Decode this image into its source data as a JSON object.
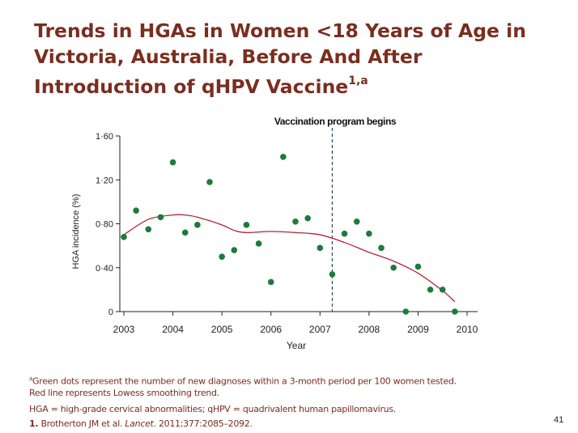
{
  "slide": {
    "title_main": "Trends in HGAs in Women <18 Years of Age in Victoria, Australia, Before And After Introduction of qHPV Vaccine",
    "title_sup": "1,a",
    "page_number": "41"
  },
  "footnotes": {
    "note_a_marker": "a",
    "note_a_line1": "Green dots represent the number of new diagnoses within a 3-month period per 100 women tested.",
    "note_a_line2": "Red line represents Lowess smoothing trend.",
    "abbrev": "HGA = high-grade cervical abnormalities; qHPV = quadrivalent human papillomavirus.",
    "ref_number": "1.",
    "ref_authors": "Brotherton JM et al.",
    "ref_journal": "Lancet",
    "ref_rest": ". 2011;377:2085–2092."
  },
  "colors": {
    "title": "#7a2e1f",
    "dots": "#1e7a3c",
    "trend": "#b5243a",
    "marker_line": "#2b4a6b"
  },
  "chart_data": {
    "type": "scatter",
    "xlabel": "Year",
    "ylabel": "HGA incidence (%)",
    "xlim": [
      2003,
      2010
    ],
    "ylim": [
      0,
      1.6
    ],
    "x_ticks": [
      2003,
      2004,
      2005,
      2006,
      2007,
      2008,
      2009,
      2010
    ],
    "y_ticks": [
      0,
      0.4,
      0.8,
      1.2,
      1.6
    ],
    "y_tick_labels": [
      "0",
      "0·40",
      "0·80",
      "1·20",
      "1·60"
    ],
    "grid": false,
    "annotation": {
      "label": "Vaccination program begins",
      "x": 2007.25
    },
    "points": {
      "x": [
        2003.0,
        2003.25,
        2003.5,
        2003.75,
        2004.0,
        2004.25,
        2004.5,
        2004.75,
        2005.0,
        2005.25,
        2005.5,
        2005.75,
        2006.0,
        2006.25,
        2006.5,
        2006.75,
        2007.0,
        2007.25,
        2007.5,
        2007.75,
        2008.0,
        2008.25,
        2008.5,
        2008.75,
        2009.0,
        2009.25,
        2009.5,
        2009.75
      ],
      "y": [
        0.68,
        0.92,
        0.75,
        0.86,
        1.36,
        0.72,
        0.79,
        1.18,
        0.5,
        0.56,
        0.79,
        0.62,
        0.27,
        1.41,
        0.82,
        0.85,
        0.58,
        0.34,
        0.71,
        0.82,
        0.71,
        0.58,
        0.4,
        0.0,
        0.41,
        0.2,
        0.2,
        0.0
      ]
    },
    "trend": {
      "name": "Lowess",
      "x": [
        2003.0,
        2003.5,
        2004.0,
        2004.25,
        2004.5,
        2005.0,
        2005.25,
        2005.5,
        2006.0,
        2006.5,
        2007.0,
        2007.5,
        2008.0,
        2008.5,
        2009.0,
        2009.5,
        2009.75
      ],
      "y": [
        0.7,
        0.84,
        0.88,
        0.88,
        0.86,
        0.79,
        0.74,
        0.72,
        0.73,
        0.72,
        0.7,
        0.63,
        0.54,
        0.46,
        0.35,
        0.19,
        0.09
      ]
    }
  }
}
